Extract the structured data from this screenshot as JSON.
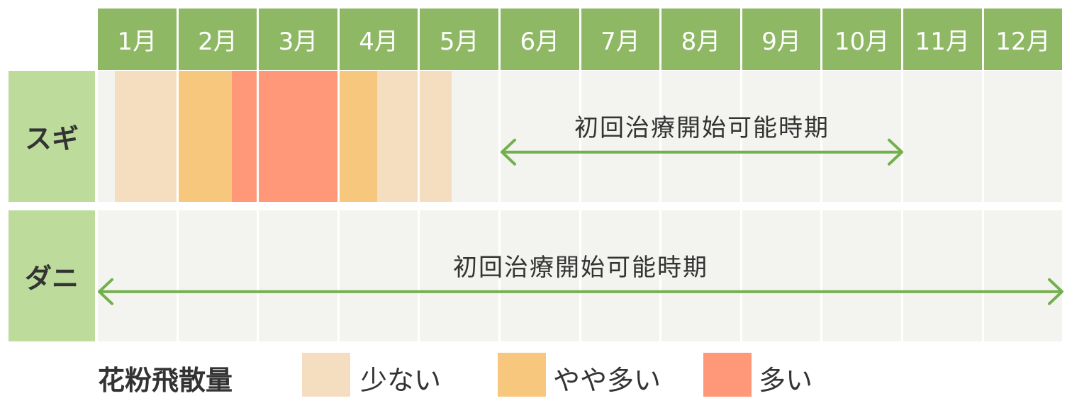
{
  "months": [
    "1月",
    "2月",
    "3月",
    "4月",
    "5月",
    "6月",
    "7月",
    "8月",
    "9月",
    "10月",
    "11月",
    "12月"
  ],
  "rows": [
    {
      "label": "スギ",
      "period_label": "初回治療開始可能時期",
      "period_start_month": 6,
      "period_end_month": 11,
      "pollen": [
        {
          "month": 1,
          "from": 0.22,
          "to": 1.0,
          "level": "low"
        },
        {
          "month": 2,
          "from": 0.0,
          "to": 0.68,
          "level": "medium"
        },
        {
          "month": 2,
          "from": 0.68,
          "to": 1.0,
          "level": "high"
        },
        {
          "month": 3,
          "from": 0.0,
          "to": 1.0,
          "level": "high"
        },
        {
          "month": 4,
          "from": 0.0,
          "to": 0.48,
          "level": "medium"
        },
        {
          "month": 4,
          "from": 0.48,
          "to": 1.0,
          "level": "low"
        },
        {
          "month": 5,
          "from": 0.0,
          "to": 0.4,
          "level": "low"
        }
      ]
    },
    {
      "label": "ダニ",
      "period_label": "初回治療開始可能時期",
      "period_start_month": 1,
      "period_end_month": 13,
      "pollen": []
    }
  ],
  "legend": {
    "title": "花粉飛散量",
    "items": [
      {
        "level": "low",
        "label": "少ない",
        "color": "#f5dec0"
      },
      {
        "level": "medium",
        "label": "やや多い",
        "color": "#f7c77e"
      },
      {
        "level": "high",
        "label": "多い",
        "color": "#ff9878"
      }
    ]
  },
  "colors": {
    "header": "#8fb865",
    "row_label": "#bddb9b",
    "cell": "#f3f3ef",
    "arrow": "#72b04c"
  }
}
